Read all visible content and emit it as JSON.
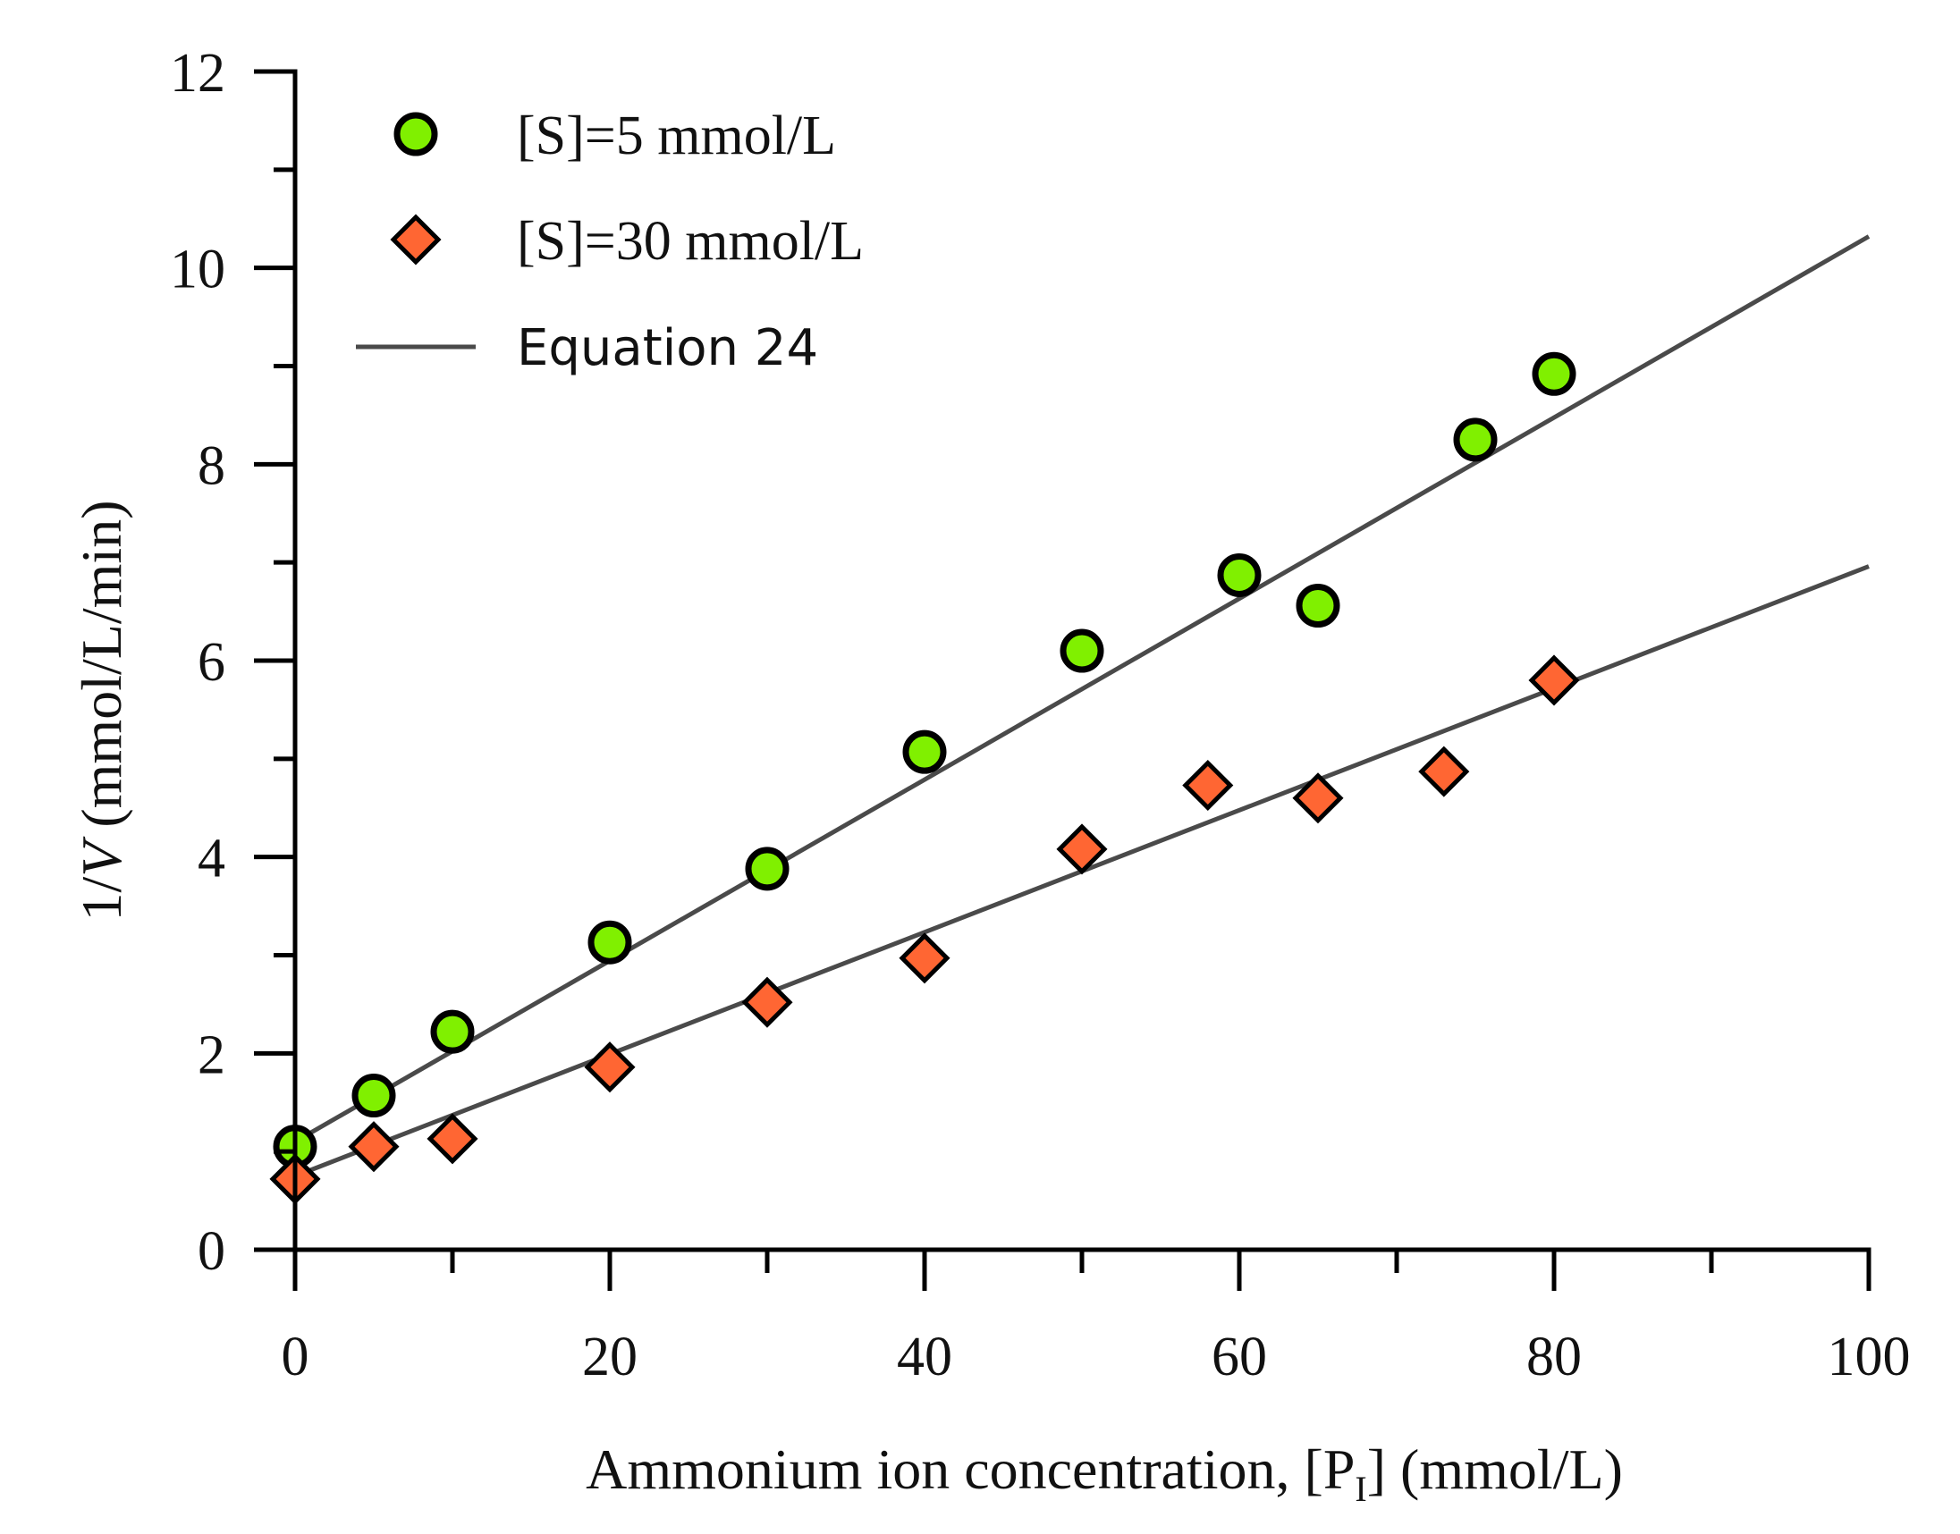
{
  "chart_data": {
    "type": "scatter",
    "title": "",
    "xlabel": "Ammonium ion concentration, [P",
    "xlabel_subscript": "I",
    "xlabel_suffix": "] (mmol/L)",
    "ylabel_prefix": "1/",
    "ylabel_italic": "V",
    "ylabel_suffix": " (mmol/L/min)",
    "xlim": [
      0,
      100
    ],
    "ylim": [
      0,
      12
    ],
    "x_major_ticks": [
      0,
      20,
      40,
      60,
      80,
      100
    ],
    "x_tick_labels": [
      "0",
      "20",
      "40",
      "60",
      "80",
      "100"
    ],
    "x_minor_ticks": [
      10,
      30,
      50,
      70,
      90
    ],
    "y_major_ticks": [
      0,
      2,
      4,
      6,
      8,
      10,
      12
    ],
    "y_tick_labels": [
      "0",
      "2",
      "4",
      "6",
      "8",
      "10",
      "12"
    ],
    "y_minor_ticks": [
      1,
      3,
      5,
      7,
      9,
      11
    ],
    "grid": false,
    "legend_position": "top-left",
    "series": [
      {
        "name": "[S]=5 mmol/L",
        "marker": "circle",
        "color": "#80F000",
        "x": [
          0,
          5,
          10,
          20,
          30,
          40,
          50,
          60,
          65,
          75,
          80
        ],
        "y": [
          1.05,
          1.57,
          2.22,
          3.13,
          3.88,
          5.07,
          6.1,
          6.87,
          6.56,
          8.25,
          8.92
        ]
      },
      {
        "name": "[S]=30 mmol/L",
        "marker": "diamond",
        "color": "#FF6633",
        "x": [
          0,
          5,
          10,
          20,
          30,
          40,
          50,
          58,
          65,
          73,
          80
        ],
        "y": [
          0.72,
          1.05,
          1.13,
          1.86,
          2.52,
          2.97,
          4.08,
          4.73,
          4.6,
          4.87,
          5.8
        ]
      }
    ],
    "fit_lines": [
      {
        "name": "Equation 24",
        "applies_to": "[S]=5 mmol/L",
        "x": [
          0,
          100
        ],
        "y": [
          1.1,
          10.32
        ],
        "color": "#4a4a4a"
      },
      {
        "name": "Equation 24",
        "applies_to": "[S]=30 mmol/L",
        "x": [
          0,
          100
        ],
        "y": [
          0.75,
          6.96
        ],
        "color": "#4a4a4a"
      }
    ],
    "legend": [
      {
        "label": "[S]=5 mmol/L",
        "kind": "circle"
      },
      {
        "label": "[S]=30 mmol/L",
        "kind": "diamond"
      },
      {
        "label": "Equation 24",
        "kind": "line"
      }
    ]
  }
}
